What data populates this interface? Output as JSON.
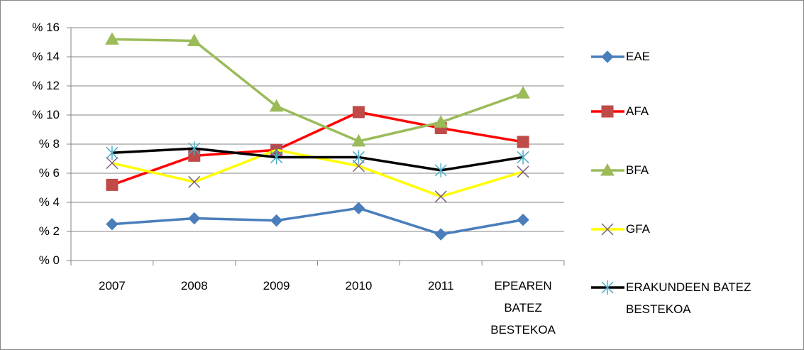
{
  "chart_data": {
    "type": "line",
    "categories": [
      "2007",
      "2008",
      "2009",
      "2010",
      "2011",
      "EPEAREN BATEZ BESTEKOA"
    ],
    "series": [
      {
        "name": "EAE",
        "color": "#4a7ebb",
        "marker": "diamond",
        "marker_color": "#4a7ebb",
        "values": [
          2.5,
          2.9,
          2.75,
          3.6,
          1.8,
          2.8
        ]
      },
      {
        "name": "AFA",
        "color": "#ff0000",
        "marker": "square",
        "marker_color": "#be4b48",
        "values": [
          5.2,
          7.2,
          7.6,
          10.2,
          9.1,
          8.15
        ]
      },
      {
        "name": "BFA",
        "color": "#9bbb59",
        "marker": "triangle",
        "marker_color": "#9bbb59",
        "values": [
          15.2,
          15.1,
          10.6,
          8.2,
          9.5,
          11.5
        ]
      },
      {
        "name": "GFA",
        "color": "#ffff00",
        "marker": "x",
        "marker_color": "#7f6084",
        "values": [
          6.7,
          5.4,
          7.6,
          6.5,
          4.4,
          6.1
        ]
      },
      {
        "name": "ERAKUNDEEN BATEZ BESTEKOA",
        "color": "#000000",
        "marker": "asterisk",
        "marker_color": "#4bacc6",
        "values": [
          7.4,
          7.7,
          7.1,
          7.1,
          6.2,
          7.1
        ]
      }
    ],
    "ylim": [
      0,
      16
    ],
    "yticks": [
      {
        "value": 0,
        "label": "% 0"
      },
      {
        "value": 2,
        "label": "% 2"
      },
      {
        "value": 4,
        "label": "% 4"
      },
      {
        "value": 6,
        "label": "% 6"
      },
      {
        "value": 8,
        "label": "% 8"
      },
      {
        "value": 10,
        "label": "% 10"
      },
      {
        "value": 12,
        "label": "% 12"
      },
      {
        "value": 14,
        "label": "% 14"
      },
      {
        "value": 16,
        "label": "% 16"
      }
    ],
    "grid": true,
    "legend": "right"
  }
}
